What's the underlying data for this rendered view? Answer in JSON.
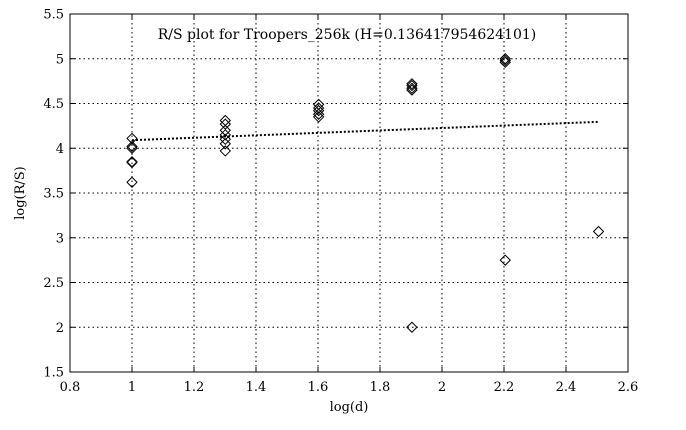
{
  "chart_data": {
    "type": "scatter",
    "title": "R/S plot for Troopers_256k (H=0.136417954624101)",
    "xlabel": "log(d)",
    "ylabel": "log(R/S)",
    "xlim": [
      0.8,
      2.6
    ],
    "ylim": [
      1.5,
      5.5
    ],
    "xticks": [
      "0.8",
      "1",
      "1.2",
      "1.4",
      "1.6",
      "1.8",
      "2",
      "2.2",
      "2.4",
      "2.6"
    ],
    "yticks": [
      "1.5",
      "2",
      "2.5",
      "3",
      "3.5",
      "4",
      "4.5",
      "5",
      "5.5"
    ],
    "grid": true,
    "marker": "diamond-open",
    "points": [
      {
        "x": 1.0,
        "y": 4.11
      },
      {
        "x": 1.0,
        "y": 4.02
      },
      {
        "x": 1.0,
        "y": 4.0
      },
      {
        "x": 1.0,
        "y": 3.85
      },
      {
        "x": 1.0,
        "y": 3.84
      },
      {
        "x": 1.0,
        "y": 3.62
      },
      {
        "x": 1.301,
        "y": 4.31
      },
      {
        "x": 1.301,
        "y": 4.27
      },
      {
        "x": 1.301,
        "y": 4.2
      },
      {
        "x": 1.301,
        "y": 4.15
      },
      {
        "x": 1.301,
        "y": 4.1
      },
      {
        "x": 1.301,
        "y": 4.05
      },
      {
        "x": 1.301,
        "y": 3.97
      },
      {
        "x": 1.602,
        "y": 4.49
      },
      {
        "x": 1.602,
        "y": 4.45
      },
      {
        "x": 1.602,
        "y": 4.42
      },
      {
        "x": 1.602,
        "y": 4.38
      },
      {
        "x": 1.602,
        "y": 4.35
      },
      {
        "x": 1.903,
        "y": 4.72
      },
      {
        "x": 1.903,
        "y": 4.7
      },
      {
        "x": 1.903,
        "y": 4.67
      },
      {
        "x": 1.903,
        "y": 4.65
      },
      {
        "x": 1.903,
        "y": 2.0
      },
      {
        "x": 2.204,
        "y": 5.0
      },
      {
        "x": 2.204,
        "y": 4.98
      },
      {
        "x": 2.204,
        "y": 4.96
      },
      {
        "x": 2.204,
        "y": 2.75
      },
      {
        "x": 2.505,
        "y": 3.07
      }
    ],
    "fit_line": {
      "x": [
        1.0,
        2.505
      ],
      "y": [
        4.09,
        4.295
      ]
    }
  }
}
